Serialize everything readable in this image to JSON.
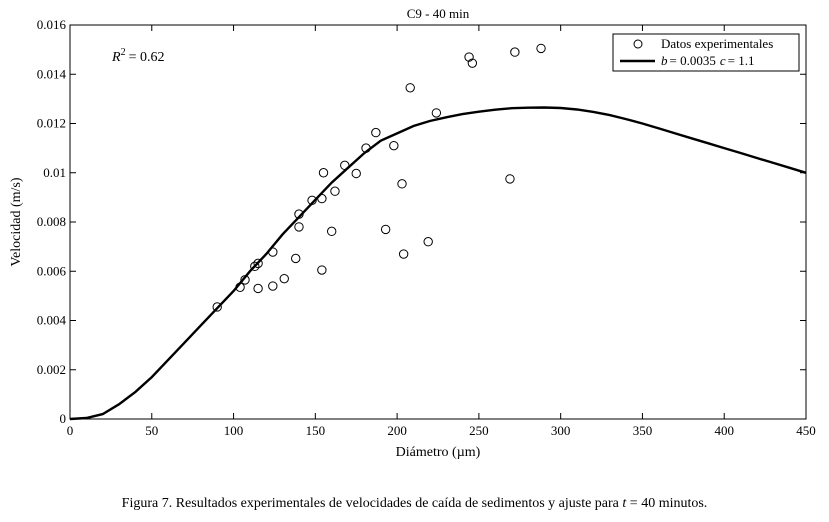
{
  "chart_data": {
    "type": "scatter",
    "title": "C9 - 40 min",
    "xlabel": "Diámetro (µm)",
    "ylabel": "Velocidad (m/s)",
    "xlim": [
      0,
      450
    ],
    "ylim": [
      0,
      0.016
    ],
    "x_ticks": [
      "0",
      "50",
      "100",
      "150",
      "200",
      "250",
      "300",
      "350",
      "400",
      "450"
    ],
    "y_ticks": [
      "0",
      "0.002",
      "0.004",
      "0.006",
      "0.008",
      "0.01",
      "0.012",
      "0.014",
      "0.016"
    ],
    "annotation": {
      "r2_label": "R",
      "r2_exp": "2",
      "r2_value": "= 0.62"
    },
    "legend": {
      "position": "top-right",
      "scatter_label": "Datos experimentales",
      "fit_label_b": "b",
      "fit_label_b_value": "= 0.0035",
      "fit_label_c": "c",
      "fit_label_c_value": "= 1.1"
    },
    "series": [
      {
        "name": "Datos experimentales",
        "type": "scatter",
        "points": [
          [
            90,
            0.00455
          ],
          [
            104,
            0.00535
          ],
          [
            107,
            0.00565
          ],
          [
            113,
            0.0062
          ],
          [
            115,
            0.00632
          ],
          [
            115,
            0.0053
          ],
          [
            124,
            0.0054
          ],
          [
            124,
            0.00678
          ],
          [
            131,
            0.0057
          ],
          [
            138,
            0.00652
          ],
          [
            140,
            0.00832
          ],
          [
            140,
            0.0078
          ],
          [
            148,
            0.00888
          ],
          [
            154,
            0.00895
          ],
          [
            154,
            0.00605
          ],
          [
            155,
            0.01
          ],
          [
            160,
            0.00762
          ],
          [
            162,
            0.00925
          ],
          [
            168,
            0.0103
          ],
          [
            175,
            0.00997
          ],
          [
            181,
            0.011
          ],
          [
            187,
            0.01163
          ],
          [
            193,
            0.0077
          ],
          [
            198,
            0.0111
          ],
          [
            203,
            0.00955
          ],
          [
            204,
            0.0067
          ],
          [
            208,
            0.01345
          ],
          [
            219,
            0.0072
          ],
          [
            224,
            0.01243
          ],
          [
            244,
            0.0147
          ],
          [
            246,
            0.01445
          ],
          [
            269,
            0.00975
          ],
          [
            272,
            0.0149
          ],
          [
            288,
            0.01505
          ]
        ]
      },
      {
        "name": "b = 0.0035 c = 1.1",
        "type": "line",
        "points": [
          [
            0,
            0
          ],
          [
            10,
            4e-05
          ],
          [
            20,
            0.0002
          ],
          [
            30,
            0.0006
          ],
          [
            40,
            0.0011
          ],
          [
            50,
            0.0017
          ],
          [
            60,
            0.0024
          ],
          [
            70,
            0.0031
          ],
          [
            80,
            0.0038
          ],
          [
            90,
            0.0045
          ],
          [
            100,
            0.0052
          ],
          [
            110,
            0.006
          ],
          [
            120,
            0.0067
          ],
          [
            130,
            0.0075
          ],
          [
            140,
            0.0082
          ],
          [
            150,
            0.0089
          ],
          [
            160,
            0.0096
          ],
          [
            170,
            0.0102
          ],
          [
            180,
            0.0108
          ],
          [
            190,
            0.0113
          ],
          [
            200,
            0.0116
          ],
          [
            210,
            0.0119
          ],
          [
            220,
            0.0121
          ],
          [
            230,
            0.01225
          ],
          [
            240,
            0.01238
          ],
          [
            250,
            0.01248
          ],
          [
            260,
            0.01256
          ],
          [
            270,
            0.01262
          ],
          [
            280,
            0.01264
          ],
          [
            290,
            0.01265
          ],
          [
            300,
            0.01263
          ],
          [
            310,
            0.01257
          ],
          [
            320,
            0.01247
          ],
          [
            330,
            0.01234
          ],
          [
            340,
            0.01218
          ],
          [
            350,
            0.012
          ],
          [
            360,
            0.0118
          ],
          [
            370,
            0.0116
          ],
          [
            380,
            0.0114
          ],
          [
            390,
            0.0112
          ],
          [
            400,
            0.011
          ],
          [
            410,
            0.0108
          ],
          [
            420,
            0.0106
          ],
          [
            430,
            0.0104
          ],
          [
            440,
            0.0102
          ],
          [
            450,
            0.01
          ]
        ]
      }
    ]
  },
  "caption": {
    "prefix": "Figura 7. Resultados experimentales de velocidades de caída de sedimentos y ajuste para ",
    "var": "t",
    "suffix": " = 40 minutos."
  }
}
